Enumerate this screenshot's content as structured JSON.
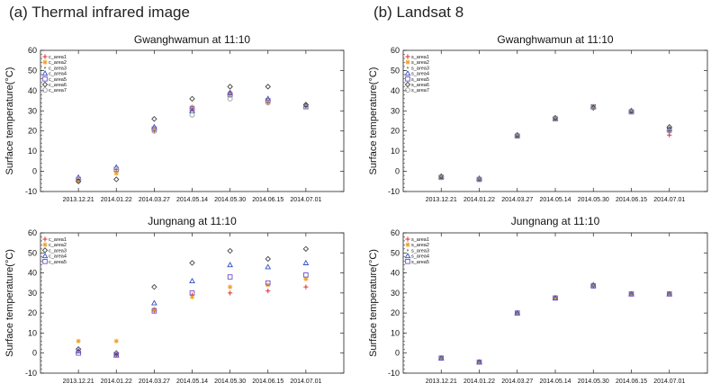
{
  "panels": {
    "a_header": "(a) Thermal infrared image",
    "b_header": "(b) Landsat 8"
  },
  "colors": {
    "area1": "#e03030",
    "area2": "#f0a020",
    "area3": "#888888",
    "area4": "#3050c0",
    "area5": "#7050c0",
    "area6": "#444444",
    "area7": "#999999"
  },
  "chart_data": [
    {
      "type": "scatter",
      "title": "Gwanghwamun at 11:10",
      "ylabel": "Surface temperature(°C)",
      "categories": [
        "2013.12.21",
        "2014.01.22",
        "2014.03.27",
        "2014.05.14",
        "2014.05.30",
        "2014.06.15",
        "2014.07.01"
      ],
      "ylim": [
        -10,
        60
      ],
      "yticks": [
        -10,
        0,
        10,
        20,
        30,
        40,
        50,
        60
      ],
      "legend_position": "top-left",
      "series": [
        {
          "name": "c_area1",
          "marker": "plus",
          "color": "#e03030",
          "values": [
            -4,
            0,
            20,
            31,
            38,
            34,
            32
          ]
        },
        {
          "name": "c_area2",
          "marker": "star",
          "color": "#f0a020",
          "values": [
            -5,
            -1,
            21,
            32,
            39,
            35,
            33
          ]
        },
        {
          "name": "c_area3",
          "marker": "dot",
          "color": "#888888",
          "values": [
            -4,
            1,
            20,
            31,
            37,
            35,
            32
          ]
        },
        {
          "name": "c_area4",
          "marker": "triangle",
          "color": "#3050c0",
          "values": [
            -3,
            2,
            22,
            30,
            39,
            36,
            33
          ]
        },
        {
          "name": "c_area5",
          "marker": "square",
          "color": "#7050c0",
          "values": [
            -4,
            1,
            21,
            31,
            38,
            35,
            32
          ]
        },
        {
          "name": "c_area6",
          "marker": "diamond",
          "color": "#444444",
          "values": [
            -5,
            -4,
            26,
            36,
            42,
            42,
            33
          ]
        },
        {
          "name": "c_area7",
          "marker": "circle",
          "color": "#999999",
          "values": [
            -4,
            1,
            20,
            28,
            36,
            34,
            32
          ]
        }
      ]
    },
    {
      "type": "scatter",
      "title": "Gwanghwamun at 11:10",
      "ylabel": "Surface temperature(°C)",
      "categories": [
        "2013.12.21",
        "2014.01.22",
        "2014.03.27",
        "2014.05.14",
        "2014.05.30",
        "2014.06.15",
        "2014.07.01"
      ],
      "ylim": [
        -10,
        60
      ],
      "yticks": [
        -10,
        0,
        10,
        20,
        30,
        40,
        50,
        60
      ],
      "legend_position": "top-left",
      "series": [
        {
          "name": "s_area1",
          "marker": "plus",
          "color": "#e03030",
          "values": [
            -3,
            -4,
            17.5,
            26,
            32,
            29.5,
            18
          ]
        },
        {
          "name": "s_area2",
          "marker": "star",
          "color": "#f0a020",
          "values": [
            -3,
            -4,
            17.5,
            26,
            32,
            29.5,
            21
          ]
        },
        {
          "name": "s_area3",
          "marker": "dot",
          "color": "#888888",
          "values": [
            -3,
            -4,
            17.5,
            26,
            31.5,
            29.5,
            20
          ]
        },
        {
          "name": "s_area4",
          "marker": "triangle",
          "color": "#3050c0",
          "values": [
            -2.5,
            -3.5,
            18,
            26.5,
            32,
            30,
            21
          ]
        },
        {
          "name": "s_area5",
          "marker": "square",
          "color": "#7050c0",
          "values": [
            -3,
            -4,
            17.5,
            26,
            32,
            29.5,
            20.5
          ]
        },
        {
          "name": "s_area6",
          "marker": "diamond",
          "color": "#444444",
          "values": [
            -2.5,
            -4,
            18,
            26.5,
            31.5,
            30,
            22
          ]
        },
        {
          "name": "s_area7",
          "marker": "circle",
          "color": "#999999",
          "values": [
            -3,
            -4,
            17.5,
            26,
            32,
            29.5,
            20
          ]
        }
      ]
    },
    {
      "type": "scatter",
      "title": "Jungnang at 11:10",
      "ylabel": "Surface temperature(°C)",
      "categories": [
        "2013.12.21",
        "2014.01.22",
        "2014.03.27",
        "2014.05.14",
        "2014.05.30",
        "2014.06.15",
        "2014.07.01"
      ],
      "ylim": [
        -10,
        60
      ],
      "yticks": [
        -10,
        0,
        10,
        20,
        30,
        40,
        50,
        60
      ],
      "legend_position": "top-left",
      "series": [
        {
          "name": "c_area1",
          "marker": "plus",
          "color": "#e03030",
          "values": [
            1,
            -1,
            21,
            29,
            30,
            31,
            33
          ]
        },
        {
          "name": "c_area2",
          "marker": "star",
          "color": "#f0a020",
          "values": [
            6,
            6,
            22,
            28,
            33,
            34,
            37
          ]
        },
        {
          "name": "c_area3",
          "marker": "diamond",
          "color": "#444444",
          "values": [
            2,
            0,
            33,
            45,
            51,
            47,
            52
          ]
        },
        {
          "name": "c_area4",
          "marker": "triangle",
          "color": "#3050c0",
          "values": [
            1,
            -1,
            25,
            36,
            44,
            43,
            45
          ]
        },
        {
          "name": "c_area5",
          "marker": "square",
          "color": "#7050c0",
          "values": [
            0,
            -1,
            21,
            30,
            38,
            35,
            39
          ]
        }
      ]
    },
    {
      "type": "scatter",
      "title": "Jungnang at 11:10",
      "ylabel": "Surface temperature(°C)",
      "categories": [
        "2013.12.21",
        "2014.01.22",
        "2014.03.27",
        "2014.05.14",
        "2014.05.30",
        "2014.06.15",
        "2014.07.01"
      ],
      "ylim": [
        -10,
        60
      ],
      "yticks": [
        -10,
        0,
        10,
        20,
        30,
        40,
        50,
        60
      ],
      "legend_position": "top-left",
      "series": [
        {
          "name": "s_area1",
          "marker": "plus",
          "color": "#e03030",
          "values": [
            -2.5,
            -4.5,
            20,
            27.5,
            33.5,
            29.5,
            29.5
          ]
        },
        {
          "name": "s_area2",
          "marker": "star",
          "color": "#f0a020",
          "values": [
            -2.5,
            -4.5,
            20,
            27.5,
            34,
            29.5,
            29.5
          ]
        },
        {
          "name": "s_area3",
          "marker": "dot",
          "color": "#888888",
          "values": [
            -2.5,
            -4.5,
            20,
            28,
            33.5,
            29.5,
            29.5
          ]
        },
        {
          "name": "s_area4",
          "marker": "triangle",
          "color": "#3050c0",
          "values": [
            -2.5,
            -4.5,
            20,
            27.5,
            34,
            29.5,
            29.5
          ]
        },
        {
          "name": "s_area5",
          "marker": "square",
          "color": "#7050c0",
          "values": [
            -2.5,
            -4.5,
            20,
            27.5,
            33.5,
            29.5,
            29.5
          ]
        }
      ]
    }
  ]
}
